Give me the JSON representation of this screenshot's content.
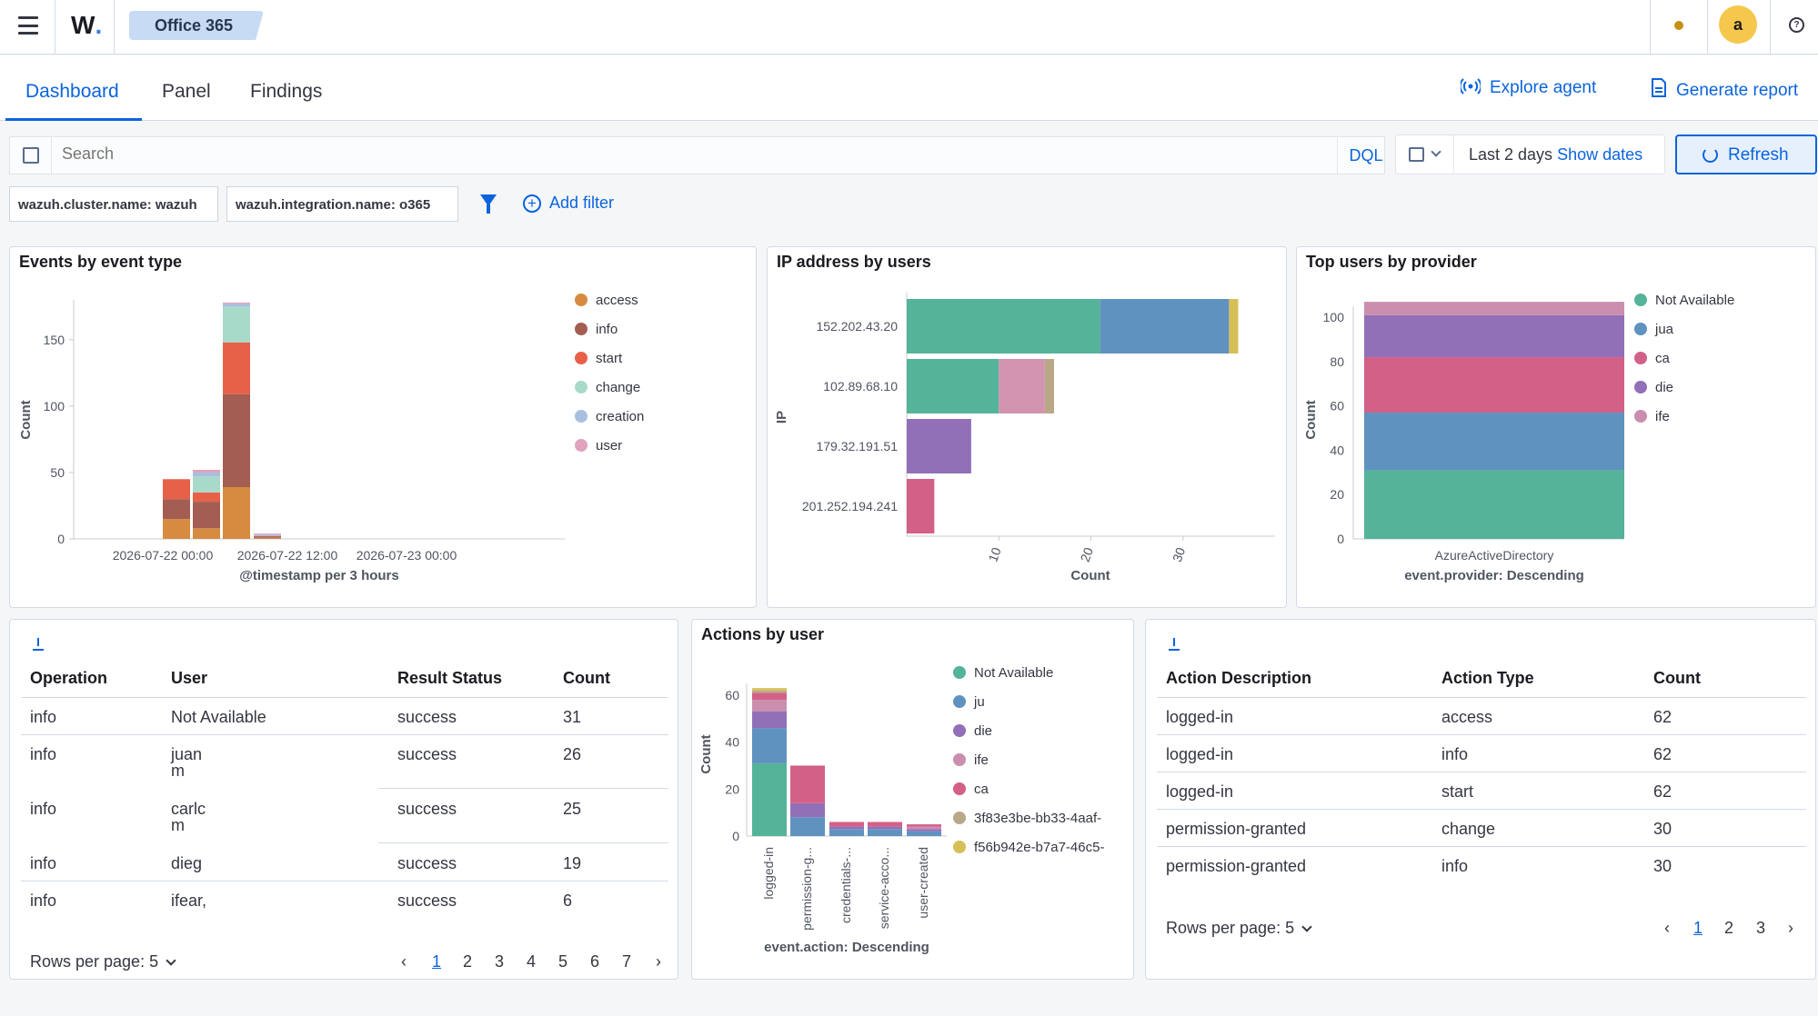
{
  "header": {
    "logo_text": "W",
    "logo_dot": ".",
    "breadcrumb": "Office 365",
    "avatar_letter": "a"
  },
  "tabs": [
    {
      "label": "Dashboard",
      "active": true
    },
    {
      "label": "Panel",
      "active": false
    },
    {
      "label": "Findings",
      "active": false
    }
  ],
  "actions": {
    "explore_agent": "Explore agent",
    "generate_report": "Generate report"
  },
  "search": {
    "placeholder": "Search",
    "language": "DQL",
    "date_range": "Last 2 days",
    "show_dates": "Show dates",
    "refresh": "Refresh"
  },
  "filters": {
    "pills": [
      "wazuh.cluster.name: wazuh",
      "wazuh.integration.name: o365"
    ],
    "add_filter": "Add filter"
  },
  "panels": {
    "events": {
      "title": "Events by event type",
      "ylabel": "Count",
      "xlabel": "@timestamp per 3 hours",
      "xticks": [
        "2026-07-22 00:00",
        "2026-07-22 12:00",
        "2026-07-23 00:00"
      ],
      "yticks": [
        "0",
        "50",
        "100",
        "150"
      ]
    },
    "ip": {
      "title": "IP address by users",
      "ylabel": "IP",
      "xlabel": "Count",
      "xticks": [
        "10",
        "20",
        "30"
      ]
    },
    "provider": {
      "title": "Top users by provider",
      "ylabel": "Count",
      "xlabel": "event.provider: Descending",
      "category": "AzureActiveDirectory",
      "yticks": [
        "0",
        "20",
        "40",
        "60",
        "80",
        "100"
      ]
    },
    "actions_by_user": {
      "title": "Actions by user",
      "ylabel": "Count",
      "xlabel": "event.action: Descending",
      "yticks": [
        "0",
        "20",
        "40",
        "60"
      ]
    }
  },
  "chart_data": [
    {
      "type": "bar",
      "stacked": true,
      "title": "Events by event type",
      "xlabel": "@timestamp per 3 hours",
      "ylabel": "Count",
      "ylim": [
        0,
        180
      ],
      "legend_position": "right",
      "series": [
        {
          "name": "access",
          "color": "#d68b41",
          "values": [
            15,
            8,
            39,
            1
          ]
        },
        {
          "name": "info",
          "color": "#a35d52",
          "values": [
            15,
            20,
            70,
            1
          ]
        },
        {
          "name": "start",
          "color": "#e76148",
          "values": [
            15,
            7,
            39,
            0
          ]
        },
        {
          "name": "change",
          "color": "#a8dac9",
          "values": [
            0,
            12,
            27,
            0
          ]
        },
        {
          "name": "creation",
          "color": "#a8bfdf",
          "values": [
            0,
            3,
            2,
            1
          ]
        },
        {
          "name": "user",
          "color": "#e1a2bb",
          "values": [
            0,
            2,
            1,
            1
          ]
        }
      ],
      "x": [
        "2026-07-22 06:00",
        "2026-07-22 09:00",
        "2026-07-22 12:00",
        "2026-07-22 15:00"
      ]
    },
    {
      "type": "bar",
      "orientation": "horizontal",
      "stacked": true,
      "title": "IP address by users",
      "xlabel": "Count",
      "ylabel": "IP",
      "xlim": [
        0,
        40
      ],
      "categories": [
        "152.202.43.20",
        "102.89.68.10",
        "179.32.191.51",
        "201.252.194.241"
      ],
      "series": [
        {
          "color": "#54b399",
          "values": [
            21,
            10,
            0,
            0
          ]
        },
        {
          "color": "#6092c0",
          "values": [
            14,
            0,
            0,
            0
          ]
        },
        {
          "color": "#d6bf57",
          "values": [
            1,
            0,
            0,
            0
          ]
        },
        {
          "color": "#d294b1",
          "values": [
            0,
            5,
            0,
            0
          ]
        },
        {
          "color": "#b9a888",
          "values": [
            0,
            1,
            0,
            0
          ]
        },
        {
          "color": "#9170b8",
          "values": [
            0,
            0,
            7,
            0
          ]
        },
        {
          "color": "#d36086",
          "values": [
            0,
            0,
            0,
            3
          ]
        }
      ]
    },
    {
      "type": "bar",
      "stacked": true,
      "title": "Top users by provider",
      "xlabel": "event.provider: Descending",
      "ylabel": "Count",
      "ylim": [
        0,
        105
      ],
      "categories": [
        "AzureActiveDirectory"
      ],
      "legend_position": "right",
      "series": [
        {
          "name": "Not Available",
          "color": "#54b399",
          "values": [
            31
          ]
        },
        {
          "name": "jua",
          "color": "#6092c0",
          "values": [
            26
          ]
        },
        {
          "name": "ca",
          "color": "#d36086",
          "values": [
            25
          ]
        },
        {
          "name": "die",
          "color": "#9170b8",
          "values": [
            19
          ]
        },
        {
          "name": "ife",
          "color": "#ca8eae",
          "values": [
            6
          ]
        }
      ]
    },
    {
      "type": "bar",
      "stacked": true,
      "title": "Actions by user",
      "xlabel": "event.action: Descending",
      "ylabel": "Count",
      "ylim": [
        0,
        65
      ],
      "categories": [
        "logged-in",
        "permission-g...",
        "credentials-...",
        "service-acco...",
        "user-created"
      ],
      "legend_position": "right",
      "series": [
        {
          "name": "Not Available",
          "color": "#54b399",
          "values": [
            31,
            0,
            0,
            0,
            0
          ]
        },
        {
          "name": "ju",
          "color": "#6092c0",
          "values": [
            15,
            8,
            3,
            3,
            2
          ]
        },
        {
          "name": "die",
          "color": "#9170b8",
          "values": [
            7,
            6,
            1,
            1,
            1
          ]
        },
        {
          "name": "ife",
          "color": "#ca8eae",
          "values": [
            5,
            0,
            0,
            0,
            1
          ]
        },
        {
          "name": "ca",
          "color": "#d36086",
          "values": [
            3,
            16,
            2,
            2,
            1
          ]
        },
        {
          "name": "3f83e3be-bb33-4aaf-",
          "color": "#b9a888",
          "values": [
            1,
            0,
            0,
            0,
            0
          ]
        },
        {
          "name": "f56b942e-b7a7-46c5-",
          "color": "#d6bf57",
          "values": [
            1,
            0,
            0,
            0,
            0
          ]
        }
      ]
    }
  ],
  "ops_table": {
    "headers": [
      "Operation",
      "User",
      "Result Status",
      "Count"
    ],
    "rows": [
      {
        "op": "info",
        "user": "Not Available",
        "user2": "",
        "status": "success",
        "count": "31"
      },
      {
        "op": "info",
        "user": "juan",
        "user2": "m",
        "status": "success",
        "count": "26"
      },
      {
        "op": "info",
        "user": "carlc",
        "user2": "m",
        "status": "success",
        "count": "25"
      },
      {
        "op": "info",
        "user": "dieg",
        "user2": "",
        "status": "success",
        "count": "19"
      },
      {
        "op": "info",
        "user": "ifear,",
        "user2": "",
        "status": "success",
        "count": "6"
      }
    ],
    "rows_per_page": "Rows per page: 5",
    "pages": [
      "1",
      "2",
      "3",
      "4",
      "5",
      "6",
      "7"
    ]
  },
  "action_table": {
    "headers": [
      "Action Description",
      "Action Type",
      "Count"
    ],
    "rows": [
      {
        "desc": "logged-in",
        "type": "access",
        "count": "62"
      },
      {
        "desc": "logged-in",
        "type": "info",
        "count": "62"
      },
      {
        "desc": "logged-in",
        "type": "start",
        "count": "62"
      },
      {
        "desc": "permission-granted",
        "type": "change",
        "count": "30"
      },
      {
        "desc": "permission-granted",
        "type": "info",
        "count": "30"
      }
    ],
    "rows_per_page": "Rows per page: 5",
    "pages": [
      "1",
      "2",
      "3"
    ]
  }
}
